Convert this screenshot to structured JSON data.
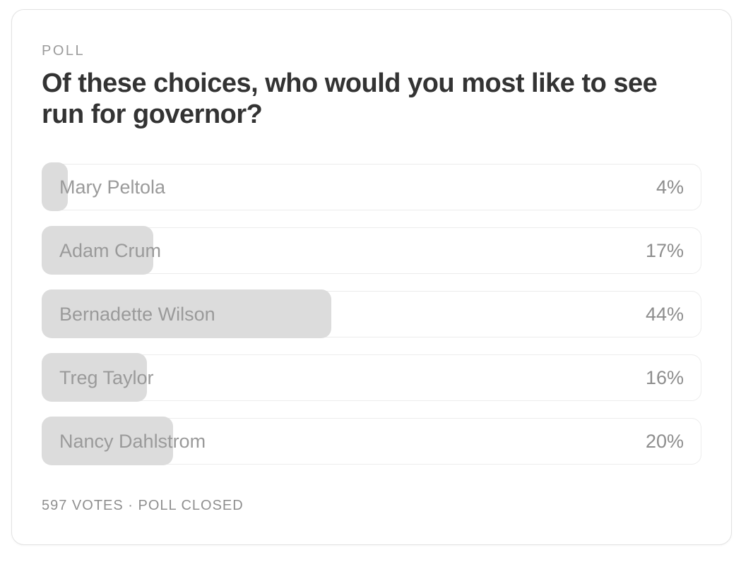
{
  "header": {
    "kicker": "POLL",
    "title": "Of these choices, who would you most like to see run for governor?",
    "title_lines": [
      "Of these choices, who would you most like to see",
      "run for governor?"
    ]
  },
  "poll": {
    "options": [
      {
        "label": "Mary Peltola",
        "percent": 4,
        "percent_label": "4%"
      },
      {
        "label": "Adam Crum",
        "percent": 17,
        "percent_label": "17%"
      },
      {
        "label": "Bernadette Wilson",
        "percent": 44,
        "percent_label": "44%"
      },
      {
        "label": "Treg Taylor",
        "percent": 16,
        "percent_label": "16%"
      },
      {
        "label": "Nancy Dahlstrom",
        "percent": 20,
        "percent_label": "20%"
      }
    ],
    "total_votes": 597,
    "status": "POLL CLOSED",
    "footer_text": "597 VOTES · POLL CLOSED"
  },
  "colors": {
    "background": "#ffffff",
    "card_border": "#e2e2e2",
    "row_border": "#ececec",
    "bar_fill": "#dcdcdc",
    "title_text": "#333333",
    "kicker_text": "#9b9b9b",
    "label_text": "#9a9a9a",
    "percent_text": "#8d8d8d",
    "footer_text": "#8f8f8f"
  }
}
